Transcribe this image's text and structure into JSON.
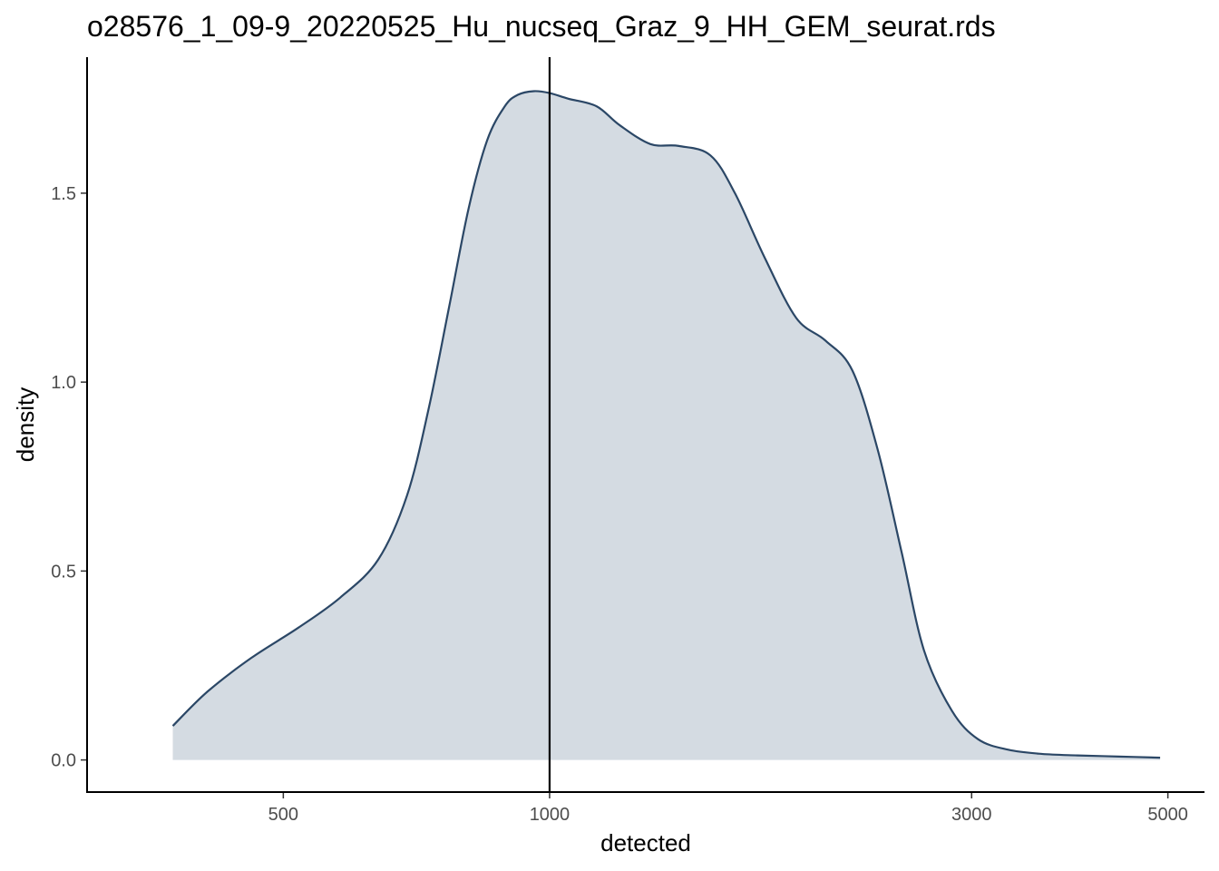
{
  "chart_data": {
    "type": "area",
    "title": "o28576_1_09-9_20220525_Hu_nucseq_Graz_9_HH_GEM_seurat.rds",
    "xlabel": "detected",
    "ylabel": "density",
    "x_scale": "log10",
    "xlim": [
      300,
      5500
    ],
    "ylim": [
      -0.085,
      1.86
    ],
    "x_ticks": [
      500,
      1000,
      3000,
      5000
    ],
    "x_tick_labels": [
      "500",
      "1000",
      "3000",
      "5000"
    ],
    "y_ticks": [
      0.0,
      0.5,
      1.0,
      1.5
    ],
    "y_tick_labels": [
      "0.0",
      "0.5",
      "1.0",
      "1.5"
    ],
    "grid": false,
    "legend": "none",
    "vline": 1000,
    "fill_color": "#d4dbe2",
    "line_color": "#2b4766",
    "vline_color": "#000000",
    "series": [
      {
        "x": [
          375,
          410,
          460,
          520,
          580,
          640,
          690,
          730,
          770,
          810,
          850,
          890,
          920,
          960,
          1000,
          1050,
          1130,
          1200,
          1300,
          1400,
          1520,
          1620,
          1750,
          1900,
          2050,
          2200,
          2350,
          2500,
          2650,
          2850,
          3050,
          3300,
          3600,
          3950,
          4400,
          4900
        ],
        "y": [
          0.09,
          0.18,
          0.27,
          0.35,
          0.43,
          0.53,
          0.7,
          0.93,
          1.2,
          1.46,
          1.64,
          1.73,
          1.76,
          1.77,
          1.765,
          1.75,
          1.73,
          1.68,
          1.63,
          1.625,
          1.6,
          1.5,
          1.33,
          1.17,
          1.11,
          1.03,
          0.82,
          0.55,
          0.29,
          0.13,
          0.055,
          0.027,
          0.016,
          0.012,
          0.009,
          0.006
        ]
      }
    ]
  }
}
